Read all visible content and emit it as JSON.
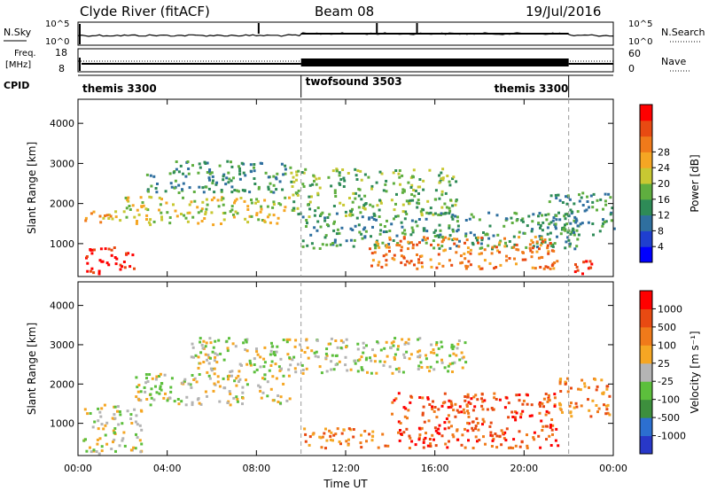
{
  "header": {
    "station": "Clyde River (fitACF)",
    "beam": "Beam 08",
    "date": "19/Jul/2016"
  },
  "panels": {
    "noise": {
      "left_label": "N.Sky",
      "right_label": "N.Search",
      "left_ticks": [
        "10^5",
        "10^0"
      ],
      "right_ticks": [
        "10^5",
        "10^0"
      ],
      "spikes_ut_hours": [
        8.1,
        13.4,
        15.2
      ]
    },
    "freq": {
      "left_label": "Freq.",
      "left_unit": "[MHz]",
      "right_label": "Nave",
      "left_ticks": [
        "18",
        "8"
      ],
      "right_ticks": [
        "60",
        "0"
      ]
    },
    "cpid": {
      "label": "CPID",
      "segments": [
        {
          "name": "themis 3300",
          "start": 0,
          "end": 10.0
        },
        {
          "name": "twofsound 3503",
          "start": 10.0,
          "end": 22.0
        },
        {
          "name": "themis 3300",
          "start": 22.0,
          "end": 24.0
        }
      ]
    }
  },
  "chart_data": [
    {
      "type": "heatmap",
      "name": "power",
      "ylabel": "Slant Range [km]",
      "ylim": [
        180,
        4600
      ],
      "yticks": [
        "1000",
        "2000",
        "3000",
        "4000"
      ],
      "xlim": [
        0,
        24
      ],
      "colorbar": {
        "label": "Power [dB]",
        "ticks": [
          "4",
          "8",
          "12",
          "16",
          "20",
          "24",
          "28"
        ],
        "colors": [
          "#0000ff",
          "#1f3fcf",
          "#2f6f9f",
          "#2e8b57",
          "#5fae3f",
          "#c8c832",
          "#f5a623",
          "#f07a1a",
          "#e84a12",
          "#ff0000"
        ]
      },
      "regions": [
        {
          "t0": 0.3,
          "t1": 2.5,
          "r0": 250,
          "r1": 950,
          "level": 9
        },
        {
          "t0": 0.2,
          "t1": 2.0,
          "r0": 1550,
          "r1": 1900,
          "level": 6
        },
        {
          "t0": 2.0,
          "t1": 9.5,
          "r0": 1500,
          "r1": 2200,
          "level": 5
        },
        {
          "t0": 3.0,
          "t1": 9.5,
          "r0": 2300,
          "r1": 3100,
          "level": 3
        },
        {
          "t0": 9.5,
          "t1": 17.0,
          "r0": 1700,
          "r1": 2900,
          "level": 4
        },
        {
          "t0": 10.0,
          "t1": 22.5,
          "r0": 900,
          "r1": 1800,
          "level": 3
        },
        {
          "t0": 13.0,
          "t1": 21.5,
          "r0": 400,
          "r1": 1200,
          "level": 7
        },
        {
          "t0": 21.0,
          "t1": 24.0,
          "r0": 1200,
          "r1": 2300,
          "level": 3
        },
        {
          "t0": 22.0,
          "t1": 23.3,
          "r0": 200,
          "r1": 600,
          "level": 9
        }
      ]
    },
    {
      "type": "heatmap",
      "name": "velocity",
      "ylabel": "Slant Range [km]",
      "xlabel": "Time UT",
      "ylim": [
        180,
        4600
      ],
      "yticks": [
        "1000",
        "2000",
        "3000",
        "4000"
      ],
      "xlim": [
        0,
        24
      ],
      "xticks": [
        "00:00",
        "04:00",
        "08:00",
        "12:00",
        "16:00",
        "20:00",
        "00:00"
      ],
      "colorbar": {
        "label": "Velocity [m s⁻¹]",
        "ticks": [
          "1000",
          "500",
          "100",
          "25",
          "-25",
          "-100",
          "-500",
          "-1000"
        ],
        "colors": [
          "#2838c8",
          "#2c6fd0",
          "#3d8f3d",
          "#5cbf3c",
          "#b4b4b4",
          "#f5a623",
          "#f07a1a",
          "#e84a12",
          "#ff0000"
        ]
      },
      "regions": [
        {
          "t0": 0.2,
          "t1": 2.8,
          "r0": 250,
          "r1": 1500,
          "level": 4
        },
        {
          "t0": 2.5,
          "t1": 9.5,
          "r0": 1500,
          "r1": 2300,
          "level": 4
        },
        {
          "t0": 5.0,
          "t1": 17.5,
          "r0": 2300,
          "r1": 3200,
          "level": 4
        },
        {
          "t0": 10.0,
          "t1": 14.0,
          "r0": 400,
          "r1": 900,
          "level": 6
        },
        {
          "t0": 14.0,
          "t1": 21.5,
          "r0": 400,
          "r1": 1800,
          "level": 7
        },
        {
          "t0": 21.5,
          "t1": 23.8,
          "r0": 1200,
          "r1": 2200,
          "level": 6
        }
      ]
    }
  ]
}
